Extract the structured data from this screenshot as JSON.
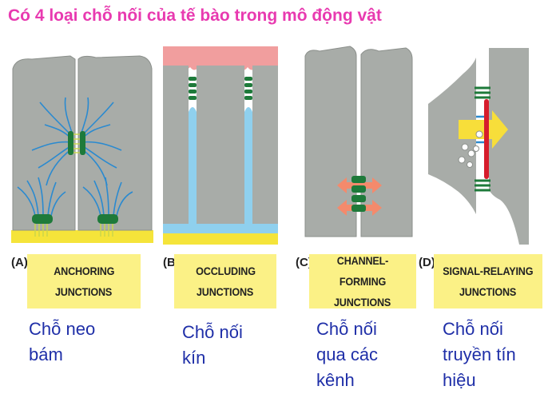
{
  "title": "Có 4 loại chỗ nối của tế bào trong mô động vật",
  "colors": {
    "title": "#e83ab0",
    "cell": "#a8aca8",
    "label_box": "#fbf186",
    "caption": "#1f2fa8",
    "junction": "#1e7a3a",
    "filament": "#2a8ad0",
    "lumen": "#f19e9e",
    "intercellular": "#8fd0ee",
    "matrix": "#f5e43a",
    "arrow": "#f48a6c",
    "signal_arrow": "#f7de3a",
    "receptor": "#d61d2c"
  },
  "panels": [
    {
      "letter": "(A)",
      "label_line1": "ANCHORING",
      "label_line2": "JUNCTIONS",
      "caption_lines": [
        "Chỗ neo",
        "bám"
      ]
    },
    {
      "letter": "(B)",
      "label_line1": "OCCLUDING",
      "label_line2": "JUNCTIONS",
      "caption_lines": [
        "Chỗ nối",
        "kín"
      ]
    },
    {
      "letter": "(C)",
      "label_line1": "CHANNEL-FORMING",
      "label_line2": "JUNCTIONS",
      "caption_lines": [
        "Chỗ nối",
        "qua các",
        "kênh"
      ]
    },
    {
      "letter": "(D)",
      "label_line1": "SIGNAL-RELAYING",
      "label_line2": "JUNCTIONS",
      "caption_lines": [
        "Chỗ nối",
        "truyền tín",
        "hiệu"
      ]
    }
  ]
}
